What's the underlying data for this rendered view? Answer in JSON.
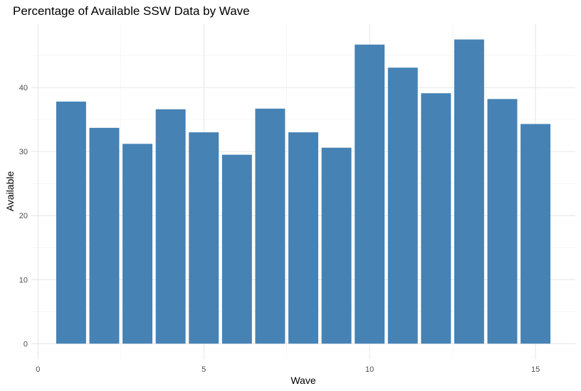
{
  "chart_data": {
    "type": "bar",
    "title": "Percentage of Available SSW Data by Wave",
    "xlabel": "Wave",
    "ylabel": "Available",
    "x": [
      1,
      2,
      3,
      4,
      5,
      6,
      7,
      8,
      9,
      10,
      11,
      12,
      13,
      14,
      15
    ],
    "values": [
      37.8,
      33.7,
      31.2,
      36.6,
      33.0,
      29.5,
      36.7,
      33.0,
      30.6,
      46.7,
      43.1,
      39.1,
      47.5,
      38.2,
      34.3
    ],
    "xlim": [
      -0.2,
      16.2
    ],
    "ylim": [
      -2.4,
      50
    ],
    "x_ticks": [
      0,
      5,
      10,
      15
    ],
    "y_ticks": [
      0,
      10,
      20,
      30,
      40
    ],
    "bar_width": 0.9,
    "bar_color": "#4682B4",
    "grid": true,
    "legend": "none"
  }
}
